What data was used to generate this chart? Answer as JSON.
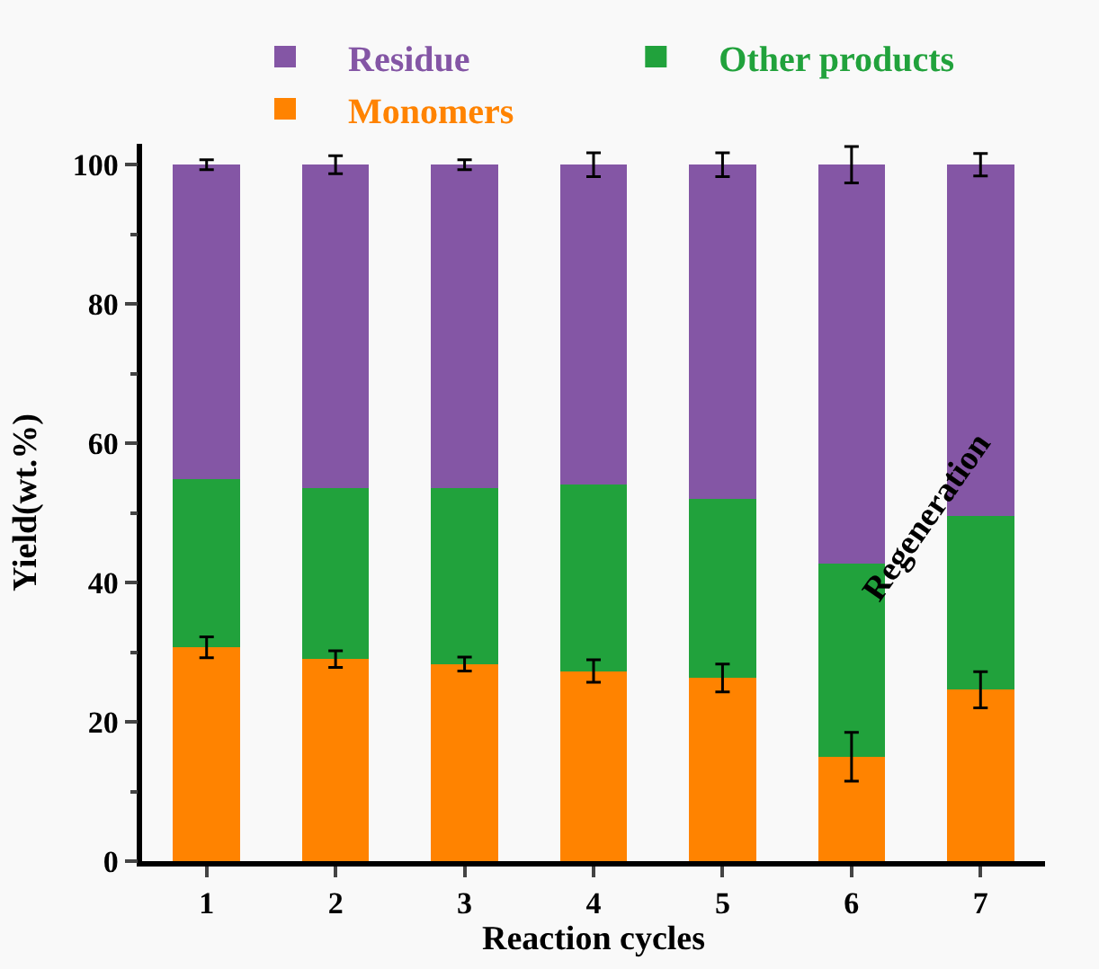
{
  "chart_data": {
    "type": "bar",
    "stacked": true,
    "xlabel": "Reaction cycles",
    "ylabel": "Yield(wt.%)",
    "categories": [
      "1",
      "2",
      "3",
      "4",
      "5",
      "6",
      "7"
    ],
    "series": [
      {
        "name": "Monomers",
        "color": "#ff8300",
        "values": [
          30.7,
          29.0,
          28.3,
          27.3,
          26.3,
          15.0,
          24.6
        ],
        "errors": [
          1.5,
          1.2,
          1.0,
          1.6,
          2.0,
          3.5,
          2.6
        ]
      },
      {
        "name": "Other products",
        "color": "#21a23c",
        "values": [
          24.1,
          24.6,
          25.3,
          26.8,
          25.7,
          27.7,
          25.0
        ]
      },
      {
        "name": "Residue",
        "color": "#8456a5",
        "values": [
          45.2,
          46.4,
          46.4,
          45.9,
          48.0,
          57.3,
          50.4
        ],
        "errors": [
          0.7,
          1.3,
          0.7,
          1.7,
          1.7,
          2.6,
          1.6
        ]
      }
    ],
    "ylim": [
      0,
      103
    ],
    "yticks": [
      0,
      20,
      40,
      60,
      80,
      100
    ],
    "grid": false,
    "legend": "top",
    "annotations": [
      "Regeneration"
    ]
  }
}
